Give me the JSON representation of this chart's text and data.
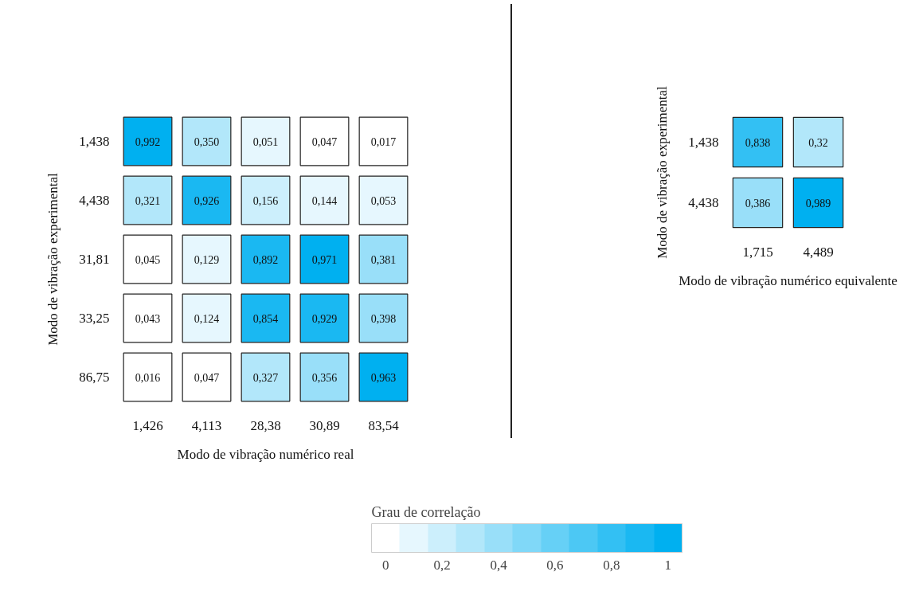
{
  "chart_data": [
    {
      "type": "heatmap",
      "xlabel": "Modo de vibração numérico real",
      "ylabel": "Modo de vibração experimental",
      "categories": [
        "1,426",
        "4,113",
        "28,38",
        "30,89",
        "83,54"
      ],
      "y_categories": [
        "1,438",
        "4,438",
        "31,81",
        "33,25",
        "86,75"
      ],
      "cells": [
        [
          0.992,
          0.35,
          0.051,
          0.047,
          0.017
        ],
        [
          0.321,
          0.926,
          0.156,
          0.144,
          0.053
        ],
        [
          0.045,
          0.129,
          0.892,
          0.971,
          0.381
        ],
        [
          0.043,
          0.124,
          0.854,
          0.929,
          0.398
        ],
        [
          0.016,
          0.047,
          0.327,
          0.356,
          0.963
        ]
      ],
      "cell_labels": [
        [
          "0,992",
          "0,350",
          "0,051",
          "0,047",
          "0,017"
        ],
        [
          "0,321",
          "0,926",
          "0,156",
          "0,144",
          "0,053"
        ],
        [
          "0,045",
          "0,129",
          "0,892",
          "0,971",
          "0,381"
        ],
        [
          "0,043",
          "0,124",
          "0,854",
          "0,929",
          "0,398"
        ],
        [
          "0,016",
          "0,047",
          "0,327",
          "0,356",
          "0,963"
        ]
      ],
      "color": "#00b0f0",
      "clim": [
        0,
        1
      ],
      "clabel": "Grau de correlação",
      "cticks": [
        0,
        {
          "value": 0.2,
          "label": "0,2"
        },
        {
          "value": 0.4,
          "label": "0,4"
        },
        {
          "value": 0.6,
          "label": "0,6"
        },
        {
          "value": 0.8,
          "label": "0,8"
        },
        1
      ]
    },
    {
      "type": "heatmap",
      "xlabel": "Modo de vibração numérico equivalente",
      "ylabel": "Modo de vibração experimental",
      "categories": [
        "1,715",
        "4,489"
      ],
      "y_categories": [
        "1,438",
        "4,438"
      ],
      "cells": [
        [
          0.838,
          0.32
        ],
        [
          0.386,
          0.989
        ]
      ],
      "cell_labels": [
        [
          "0,838",
          "0,32"
        ],
        [
          "0,386",
          "0,989"
        ]
      ],
      "color": "#00b0f0"
    }
  ]
}
